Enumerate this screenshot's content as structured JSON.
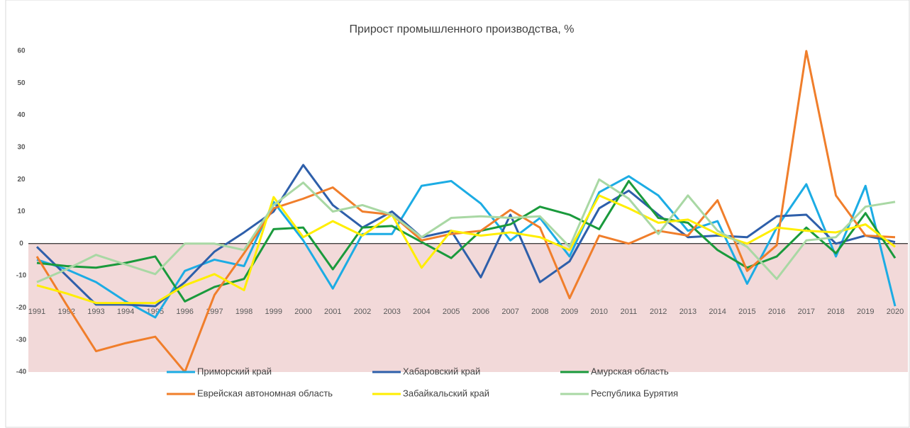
{
  "chart_data": {
    "type": "line",
    "title": "Прирост промышленного производства, %",
    "categories": [
      "1991",
      "1992",
      "1993",
      "1994",
      "1995",
      "1996",
      "1997",
      "1998",
      "1999",
      "2000",
      "2001",
      "2002",
      "2003",
      "2004",
      "2005",
      "2006",
      "2007",
      "2008",
      "2009",
      "2010",
      "2011",
      "2012",
      "2013",
      "2014",
      "2015",
      "2016",
      "2017",
      "2018",
      "2019",
      "2020"
    ],
    "series": [
      {
        "name": "Приморский край",
        "color": "#1cace4",
        "values": [
          -5,
          -8,
          -12,
          -18,
          -23,
          -8.5,
          -5,
          -7,
          13,
          1,
          -14,
          3,
          3,
          18,
          19.5,
          12.5,
          1,
          8,
          -4,
          16,
          21,
          15,
          4,
          7,
          -12.5,
          5,
          18.5,
          -4,
          18,
          -19.5
        ]
      },
      {
        "name": "Хабаровский край",
        "color": "#2e5faa",
        "values": [
          -1,
          -10,
          -19,
          -19,
          -19.5,
          -12,
          -2.5,
          3.5,
          10,
          24.5,
          12,
          5,
          10,
          2,
          4,
          -10.5,
          9,
          -12,
          -5.5,
          11,
          16.5,
          9,
          2,
          2.5,
          2,
          8.5,
          9,
          0,
          2.5,
          0.5
        ]
      },
      {
        "name": "Амурская область",
        "color": "#1a9a3c",
        "values": [
          -6,
          -7,
          -7.5,
          -6,
          -4,
          -18,
          -13.5,
          -11,
          4.5,
          5,
          -8,
          5,
          5.5,
          0.5,
          -4.5,
          4,
          6,
          11.5,
          9,
          4.5,
          19.5,
          8,
          6.5,
          -2,
          -7.5,
          -4,
          5,
          -3,
          9.5,
          -4.5
        ]
      },
      {
        "name": "Еврейская автономная область",
        "color": "#f07e2b",
        "values": [
          -4,
          -19,
          -33.5,
          -31,
          -29,
          -40,
          -16,
          -3,
          11,
          14,
          17.5,
          10,
          9,
          1,
          3,
          4,
          10.5,
          5,
          -17,
          2.5,
          0,
          4,
          2.5,
          13.5,
          -8.5,
          -0.5,
          60,
          15,
          2.5,
          2
        ]
      },
      {
        "name": "Забайкальский край",
        "color": "#ffee00",
        "values": [
          -13,
          -15.5,
          -18.5,
          -18.5,
          -18.5,
          -13,
          -9.5,
          -14.5,
          14.5,
          2,
          7,
          2.5,
          9,
          -7.5,
          4,
          2.5,
          3.5,
          2,
          -2,
          15,
          11,
          6.5,
          7.5,
          3,
          0,
          5,
          4,
          3.5,
          6,
          -1
        ]
      },
      {
        "name": "Республика Бурятия",
        "color": "#a9d8a4",
        "values": [
          -12,
          -8,
          -3.5,
          -6.5,
          -9.5,
          0,
          0,
          -2,
          12,
          19,
          10,
          12,
          9,
          2,
          8,
          8.5,
          8,
          8.5,
          -1,
          20,
          14,
          3,
          15,
          4,
          -1,
          -11,
          1,
          2,
          11.5,
          13
        ]
      }
    ],
    "ylim": [
      -40,
      60
    ],
    "yticks": [
      -40,
      -30,
      -20,
      -10,
      0,
      10,
      20,
      30,
      40,
      50,
      60
    ],
    "negative_fill": "#f2d9d9",
    "legend": "bottom"
  }
}
